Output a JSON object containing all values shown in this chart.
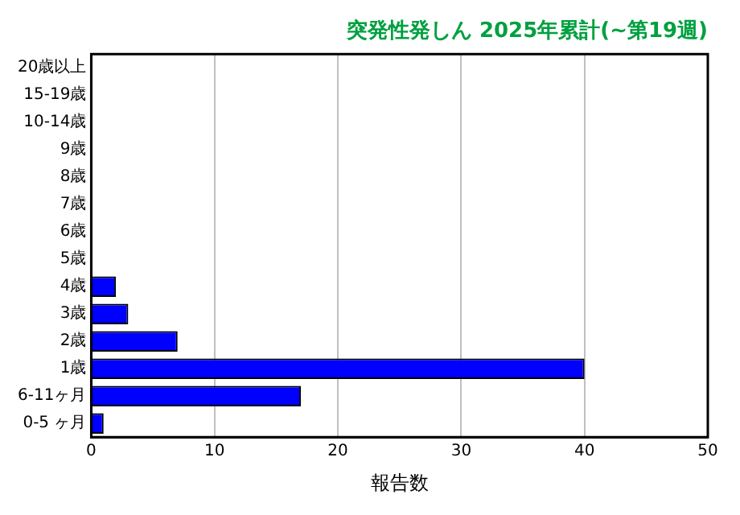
{
  "chart_data": {
    "type": "bar",
    "orientation": "horizontal",
    "title": "突発性発しん 2025年累計(~第19週)",
    "xlabel": "報告数",
    "categories": [
      "20歳以上",
      "15-19歳",
      "10-14歳",
      "9歳",
      "8歳",
      "7歳",
      "6歳",
      "5歳",
      "4歳",
      "3歳",
      "2歳",
      "1歳",
      "6-11ヶ月",
      "0-5 ヶ月"
    ],
    "values": [
      0,
      0,
      0,
      0,
      0,
      0,
      0,
      0,
      2,
      3,
      7,
      40,
      17,
      1
    ],
    "color": "#0000ff",
    "xlim": [
      0,
      50
    ],
    "xticks": [
      0,
      10,
      20,
      30,
      40,
      50
    ],
    "grid": "x",
    "legend": false
  }
}
